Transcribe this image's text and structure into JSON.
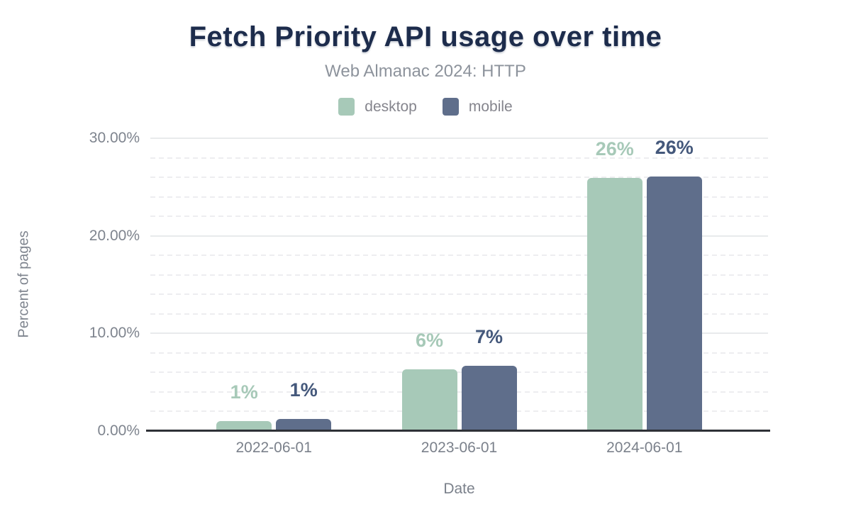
{
  "title": "Fetch Priority API usage over time",
  "subtitle": "Web Almanac 2024: HTTP",
  "colors": {
    "title": "#1d2c4c",
    "subtitle": "#8d939c",
    "axis_text": "#7e848e",
    "axis_line": "#2e3137",
    "desktop": "#a7c9b8",
    "mobile": "#5f6e8b",
    "mobile_label": "#44587b",
    "grid_major": "#e8eaec",
    "grid_minor": "#ededf0"
  },
  "chart_data": {
    "type": "bar",
    "categories": [
      "2022-06-01",
      "2023-06-01",
      "2024-06-01"
    ],
    "series": [
      {
        "name": "desktop",
        "color": "#a7c9b8",
        "label_color": "#a7c9b8",
        "values": [
          1.0,
          6.3,
          25.9
        ],
        "labels": [
          "1%",
          "6%",
          "26%"
        ]
      },
      {
        "name": "mobile",
        "color": "#5f6e8b",
        "label_color": "#44587b",
        "values": [
          1.2,
          6.7,
          26.1
        ],
        "labels": [
          "1%",
          "7%",
          "26%"
        ]
      }
    ],
    "xlabel": "Date",
    "ylabel": "Percent of pages",
    "ylim": [
      0,
      30
    ],
    "yticks": [
      {
        "value": 0,
        "label": "0.00%"
      },
      {
        "value": 10,
        "label": "10.00%"
      },
      {
        "value": 20,
        "label": "20.00%"
      },
      {
        "value": 30,
        "label": "30.00%"
      }
    ],
    "grid": {
      "major_step": 10,
      "minor_step": 2,
      "minor_style": "dashed"
    },
    "legend_position": "top"
  }
}
